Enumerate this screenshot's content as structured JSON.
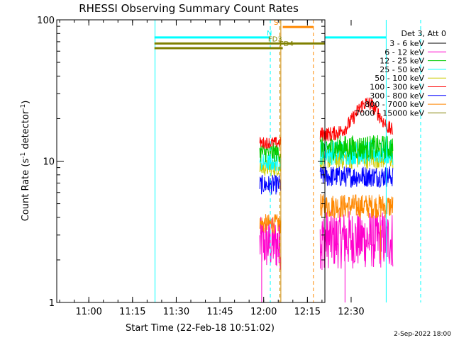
{
  "chart_data": {
    "type": "line",
    "title": "RHESSI Observing Summary Count Rates",
    "xlabel": "Start Time (22-Feb-18 10:51:02)",
    "ylabel": "Count Rate (s⁻¹ detector⁻¹)",
    "ylabel_main": "Count Rate (s",
    "ylabel_sup1": "-1",
    "ylabel_mid": " detector",
    "ylabel_sup2": "-1",
    "ylabel_end": ")",
    "yscale": "log",
    "ylim": [
      1,
      100
    ],
    "y_ticks": [
      {
        "value": 1,
        "label": "1"
      },
      {
        "value": 10,
        "label": "10"
      },
      {
        "value": 100,
        "label": "100"
      }
    ],
    "xlim_minutes": [
      10.0,
      99.0
    ],
    "x_ticks": [
      {
        "minute": 60,
        "label": "11:00"
      },
      {
        "minute": 75,
        "label": "11:15"
      },
      {
        "minute": 90,
        "label": "11:30"
      },
      {
        "minute": 105,
        "label": "11:45"
      },
      {
        "minute": 120,
        "label": "12:00"
      },
      {
        "minute": 135,
        "label": "12:15"
      },
      {
        "minute": 150,
        "label": "12:30"
      }
    ],
    "legend_title": "Det 3, Att 0",
    "legend_position": "top-right",
    "series": [
      {
        "name": "3 - 6 keV",
        "color": "#000000",
        "segments": []
      },
      {
        "name": "6 - 12 keV",
        "color": "#ff00cc",
        "segments": [
          {
            "t0": 65.0,
            "t1": 76.0,
            "base": 2.6,
            "amp": 0.55
          },
          {
            "t0": 96.5,
            "t1": 134.5,
            "base": 2.8,
            "amp": 0.6
          }
        ]
      },
      {
        "name": "12 - 25 keV",
        "color": "#00cc00",
        "segments": [
          {
            "t0": 65.0,
            "t1": 76.0,
            "base": 11.5,
            "amp": 0.2
          },
          {
            "t0": 96.5,
            "t1": 134.5,
            "base": 12.5,
            "amp": 0.25
          }
        ]
      },
      {
        "name": "25 - 50 keV",
        "color": "#00ffff",
        "segments": [
          {
            "t0": 65.0,
            "t1": 76.0,
            "base": 9.8,
            "amp": 0.18
          },
          {
            "t0": 96.5,
            "t1": 134.5,
            "base": 11.5,
            "amp": 0.25
          }
        ]
      },
      {
        "name": "50 - 100 keV",
        "color": "#cccc00",
        "segments": [
          {
            "t0": 65.0,
            "t1": 76.0,
            "base": 9.0,
            "amp": 0.18
          },
          {
            "t0": 96.5,
            "t1": 134.5,
            "base": 10.5,
            "amp": 0.22
          }
        ]
      },
      {
        "name": "100 - 300 keV",
        "color": "#ff0000",
        "segments": [
          {
            "t0": 65.0,
            "t1": 76.0,
            "base": 13.5,
            "amp": 0.12
          },
          {
            "t0": 96.5,
            "t1": 134.5,
            "base": 15.5,
            "amp": 0.15
          }
        ]
      },
      {
        "name": "300 - 800 keV",
        "color": "#0000ff",
        "segments": [
          {
            "t0": 65.0,
            "t1": 76.0,
            "base": 6.8,
            "amp": 0.2
          },
          {
            "t0": 96.5,
            "t1": 134.5,
            "base": 7.8,
            "amp": 0.22
          }
        ]
      },
      {
        "name": "800 - 7000 keV",
        "color": "#ff8800",
        "segments": [
          {
            "t0": 65.0,
            "t1": 76.0,
            "base": 3.6,
            "amp": 0.2
          },
          {
            "t0": 96.5,
            "t1": 134.5,
            "base": 4.8,
            "amp": 0.25
          }
        ]
      },
      {
        "name": "7000 - 15000 keV",
        "color": "#808000",
        "segments": []
      }
    ],
    "spikes": [
      {
        "minute": 66.0,
        "color": "#ff00cc",
        "ymin": 1.0
      },
      {
        "minute": 75.0,
        "color": "#ff00cc",
        "ymin": 1.9
      },
      {
        "minute": 109.5,
        "color": "#ff00cc",
        "ymin": 1.0
      },
      {
        "minute": 97.5,
        "color": "#ff00cc",
        "ymin": 1.7
      },
      {
        "minute": 128.0,
        "color": "#ff8800",
        "ymin": 2.0
      }
    ],
    "vlines": [
      {
        "minute": 10.3,
        "color": "#00ffff",
        "style": "solid"
      },
      {
        "minute": 70.5,
        "color": "#00ffff",
        "style": "dashed"
      },
      {
        "minute": 76.0,
        "color": "#cc8800",
        "style": "solid"
      },
      {
        "minute": 75.5,
        "color": "#cc8800",
        "style": "dashed"
      },
      {
        "minute": 93.0,
        "color": "#ff8800",
        "style": "dashed"
      },
      {
        "minute": 131.0,
        "color": "#00ffff",
        "style": "solid"
      },
      {
        "minute": 149.0,
        "color": "#00ffff",
        "style": "dashed"
      }
    ],
    "hbars": [
      {
        "label": "N",
        "t0": 10.0,
        "t1": 70.5,
        "y": 75,
        "color": "#00ffff",
        "labelMinute": 70.0
      },
      {
        "label": "N",
        "t0": 131.0,
        "t1": 149.0,
        "y": 75,
        "color": "#00ffff",
        "labelMinute": null
      },
      {
        "label": "S",
        "t0": 77.0,
        "t1": 93.0,
        "y": 89,
        "color": "#ff8800",
        "labelMinute": 73.5
      },
      {
        "label": "FD3",
        "t0": 10.0,
        "t1": 149.0,
        "y": 68,
        "color": "#808000",
        "labelMinute": 73.0
      },
      {
        "label": "FD4",
        "t0": 10.0,
        "t1": 77.0,
        "y": 63,
        "color": "#808000",
        "labelMinute": 79.0
      }
    ],
    "grid": false
  },
  "footer": {
    "date_stamp": "2-Sep-2022 18:00"
  }
}
